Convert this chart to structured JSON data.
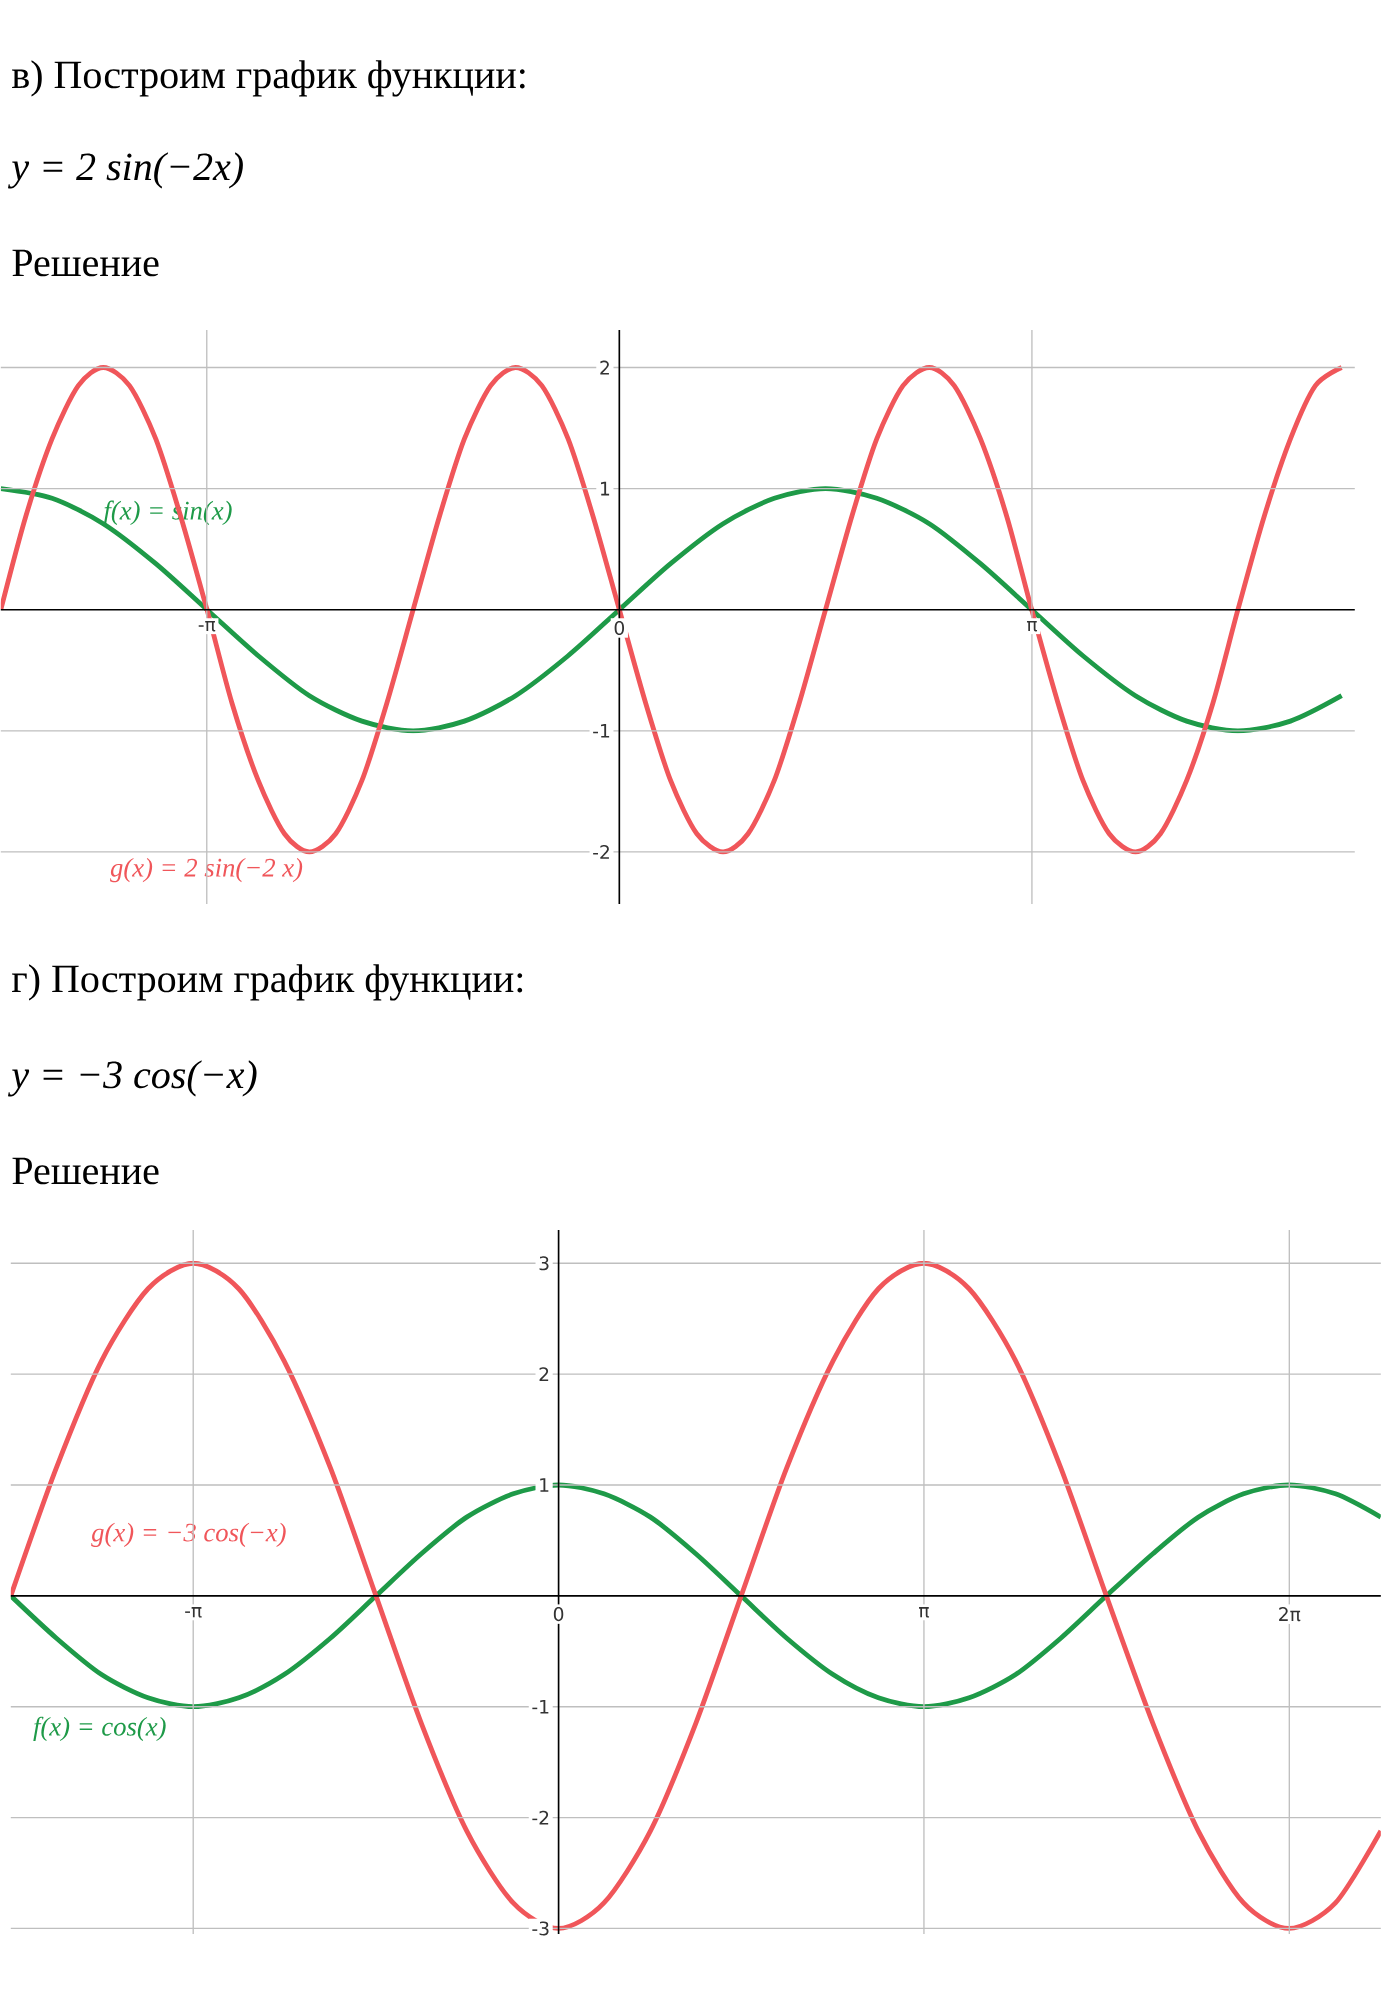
{
  "chart_data": [
    {
      "type": "line",
      "title": "в) Построим график функции:",
      "subtitle": "y = 2 sin(−2x)",
      "annotations": [
        "Решение"
      ],
      "xlim": [
        -4.71,
        5.6
      ],
      "ylim": [
        -2.43,
        2.31
      ],
      "grid": true,
      "xticks": [
        {
          "value": -3.1416,
          "label": "-π"
        },
        0,
        {
          "value": 3.1416,
          "label": "π"
        }
      ],
      "yticks": [
        -2,
        -1,
        1,
        2
      ],
      "series": [
        {
          "name": "f(x) = sin(x)",
          "color": "#1e9a48",
          "x": [
            -4.71,
            -4.32,
            -3.93,
            -3.53,
            -3.14,
            -2.75,
            -2.36,
            -1.96,
            -1.57,
            -1.18,
            -0.79,
            -0.39,
            0,
            0.39,
            0.79,
            1.18,
            1.57,
            1.96,
            2.36,
            2.75,
            3.14,
            3.53,
            3.93,
            4.32,
            4.71,
            5.11,
            5.5
          ],
          "values": [
            1,
            0.92,
            0.71,
            0.38,
            0,
            -0.38,
            -0.71,
            -0.92,
            -1,
            -0.92,
            -0.71,
            -0.38,
            0,
            0.38,
            0.71,
            0.92,
            1,
            0.92,
            0.71,
            0.38,
            0,
            -0.38,
            -0.71,
            -0.92,
            -1,
            -0.92,
            -0.71
          ]
        },
        {
          "name": "g(x) = 2 sin(−2 x)",
          "color": "#f0565a",
          "x": [
            -4.71,
            -4.52,
            -4.32,
            -4.12,
            -3.93,
            -3.73,
            -3.53,
            -3.34,
            -3.14,
            -2.95,
            -2.75,
            -2.55,
            -2.36,
            -2.16,
            -1.96,
            -1.77,
            -1.57,
            -1.37,
            -1.18,
            -0.98,
            -0.79,
            -0.59,
            -0.39,
            -0.2,
            0,
            0.2,
            0.39,
            0.59,
            0.79,
            0.98,
            1.18,
            1.37,
            1.57,
            1.77,
            1.96,
            2.16,
            2.36,
            2.55,
            2.75,
            2.95,
            3.14,
            3.34,
            3.53,
            3.73,
            3.93,
            4.12,
            4.32,
            4.52,
            4.71,
            4.91,
            5.11,
            5.3,
            5.5
          ],
          "values": [
            0,
            0.77,
            1.41,
            1.85,
            2,
            1.85,
            1.41,
            0.77,
            0,
            -0.77,
            -1.41,
            -1.85,
            -2,
            -1.85,
            -1.41,
            -0.77,
            0,
            0.77,
            1.41,
            1.85,
            2,
            1.85,
            1.41,
            0.77,
            0,
            -0.77,
            -1.41,
            -1.85,
            -2,
            -1.85,
            -1.41,
            -0.77,
            0,
            0.77,
            1.41,
            1.85,
            2,
            1.85,
            1.41,
            0.77,
            0,
            -0.77,
            -1.41,
            -1.85,
            -2,
            -1.85,
            -1.41,
            -0.77,
            0,
            0.77,
            1.41,
            1.85,
            2
          ]
        }
      ]
    },
    {
      "type": "line",
      "title": "г) Построим график функции:",
      "subtitle": "y = −3 cos(−x)",
      "annotations": [
        "Решение"
      ],
      "xlim": [
        -4.71,
        7.07
      ],
      "ylim": [
        -3.05,
        3.3
      ],
      "grid": true,
      "xticks": [
        {
          "value": -3.1416,
          "label": "-π"
        },
        0,
        {
          "value": 3.1416,
          "label": "π"
        },
        {
          "value": 6.2832,
          "label": "2π"
        }
      ],
      "yticks": [
        -3,
        -2,
        -1,
        1,
        2,
        3
      ],
      "series": [
        {
          "name": "f(x) = cos(x)",
          "color": "#1e9a48",
          "x": [
            -4.71,
            -4.32,
            -3.93,
            -3.53,
            -3.14,
            -2.75,
            -2.36,
            -1.96,
            -1.57,
            -1.18,
            -0.79,
            -0.39,
            0,
            0.39,
            0.79,
            1.18,
            1.57,
            1.96,
            2.36,
            2.75,
            3.14,
            3.53,
            3.93,
            4.32,
            4.71,
            5.11,
            5.5,
            5.89,
            6.28,
            6.68,
            7.07
          ],
          "values": [
            0,
            -0.38,
            -0.71,
            -0.92,
            -1,
            -0.92,
            -0.71,
            -0.38,
            0,
            0.38,
            0.71,
            0.92,
            1,
            0.92,
            0.71,
            0.38,
            0,
            -0.38,
            -0.71,
            -0.92,
            -1,
            -0.92,
            -0.71,
            -0.38,
            0,
            0.38,
            0.71,
            0.92,
            1,
            0.92,
            0.71
          ]
        },
        {
          "name": "g(x) = −3 cos(−x)",
          "color": "#f0565a",
          "x": [
            -4.71,
            -4.32,
            -3.93,
            -3.53,
            -3.14,
            -2.75,
            -2.36,
            -1.96,
            -1.57,
            -1.18,
            -0.79,
            -0.39,
            0,
            0.39,
            0.79,
            1.18,
            1.57,
            1.96,
            2.36,
            2.75,
            3.14,
            3.53,
            3.93,
            4.32,
            4.71,
            5.11,
            5.5,
            5.89,
            6.28,
            6.68,
            7.07
          ],
          "values": [
            0,
            1.15,
            2.12,
            2.77,
            3,
            2.77,
            2.12,
            1.15,
            0,
            -1.15,
            -2.12,
            -2.77,
            -3,
            -2.77,
            -2.12,
            -1.15,
            0,
            1.15,
            2.12,
            2.77,
            3,
            2.77,
            2.12,
            1.15,
            0,
            -1.15,
            -2.12,
            -2.77,
            -3,
            -2.77,
            -2.12
          ]
        }
      ]
    }
  ]
}
